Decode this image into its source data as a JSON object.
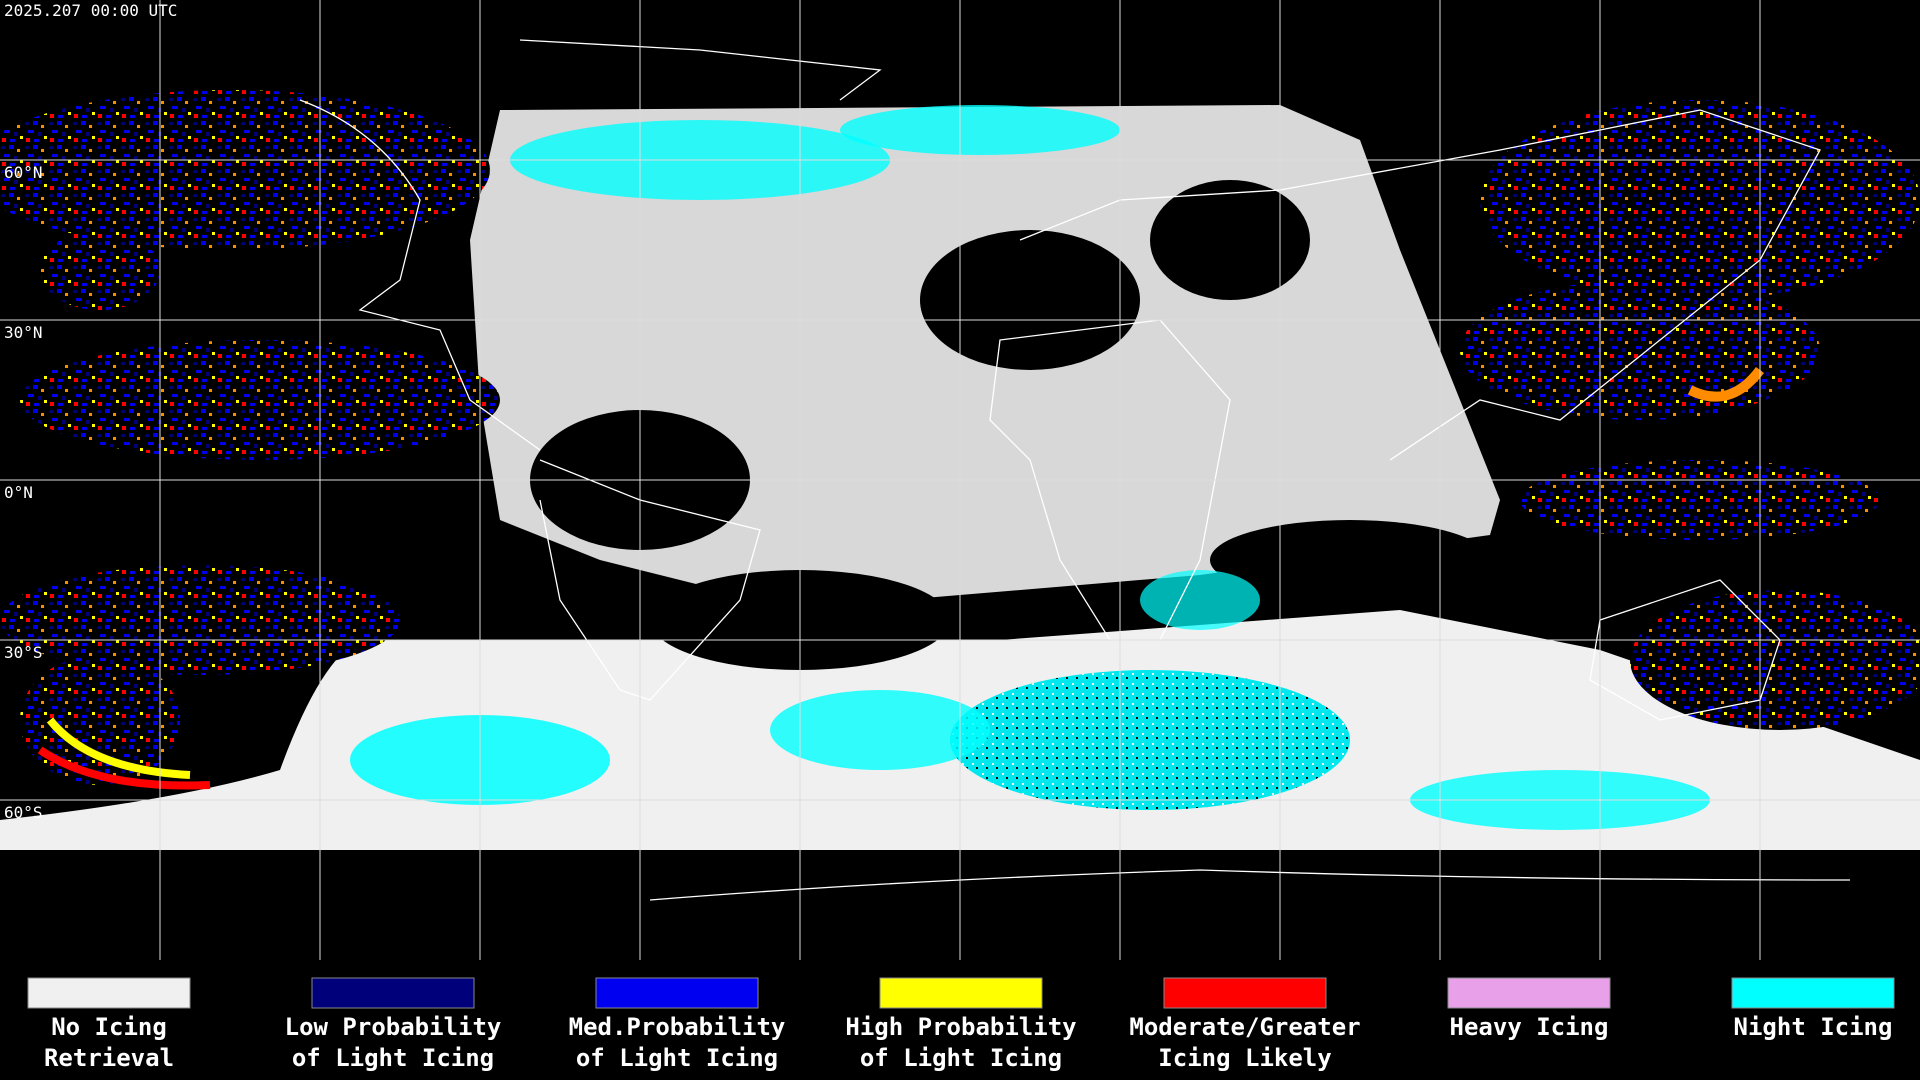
{
  "header": {
    "timestamp": "2025.207 00:00 UTC"
  },
  "map": {
    "latitude_labels": [
      "60°N",
      "30°N",
      "0°N",
      "30°S",
      "60°S"
    ]
  },
  "legend": {
    "items": [
      {
        "label": [
          "No Icing",
          "Retrieval"
        ],
        "color": "#f0f0f0"
      },
      {
        "label": [
          "Low Probability",
          "of Light Icing"
        ],
        "color": "#00007a"
      },
      {
        "label": [
          "Med.Probability",
          "of Light Icing"
        ],
        "color": "#0000f0"
      },
      {
        "label": [
          "High Probability",
          "of Light Icing"
        ],
        "color": "#ffff00"
      },
      {
        "label": [
          "Moderate/Greater",
          "Icing Likely"
        ],
        "color": "#ff0000"
      },
      {
        "label": [
          "Heavy Icing"
        ],
        "color": "#e8a0e8"
      },
      {
        "label": [
          "Night Icing"
        ],
        "color": "#00ffff"
      }
    ]
  }
}
